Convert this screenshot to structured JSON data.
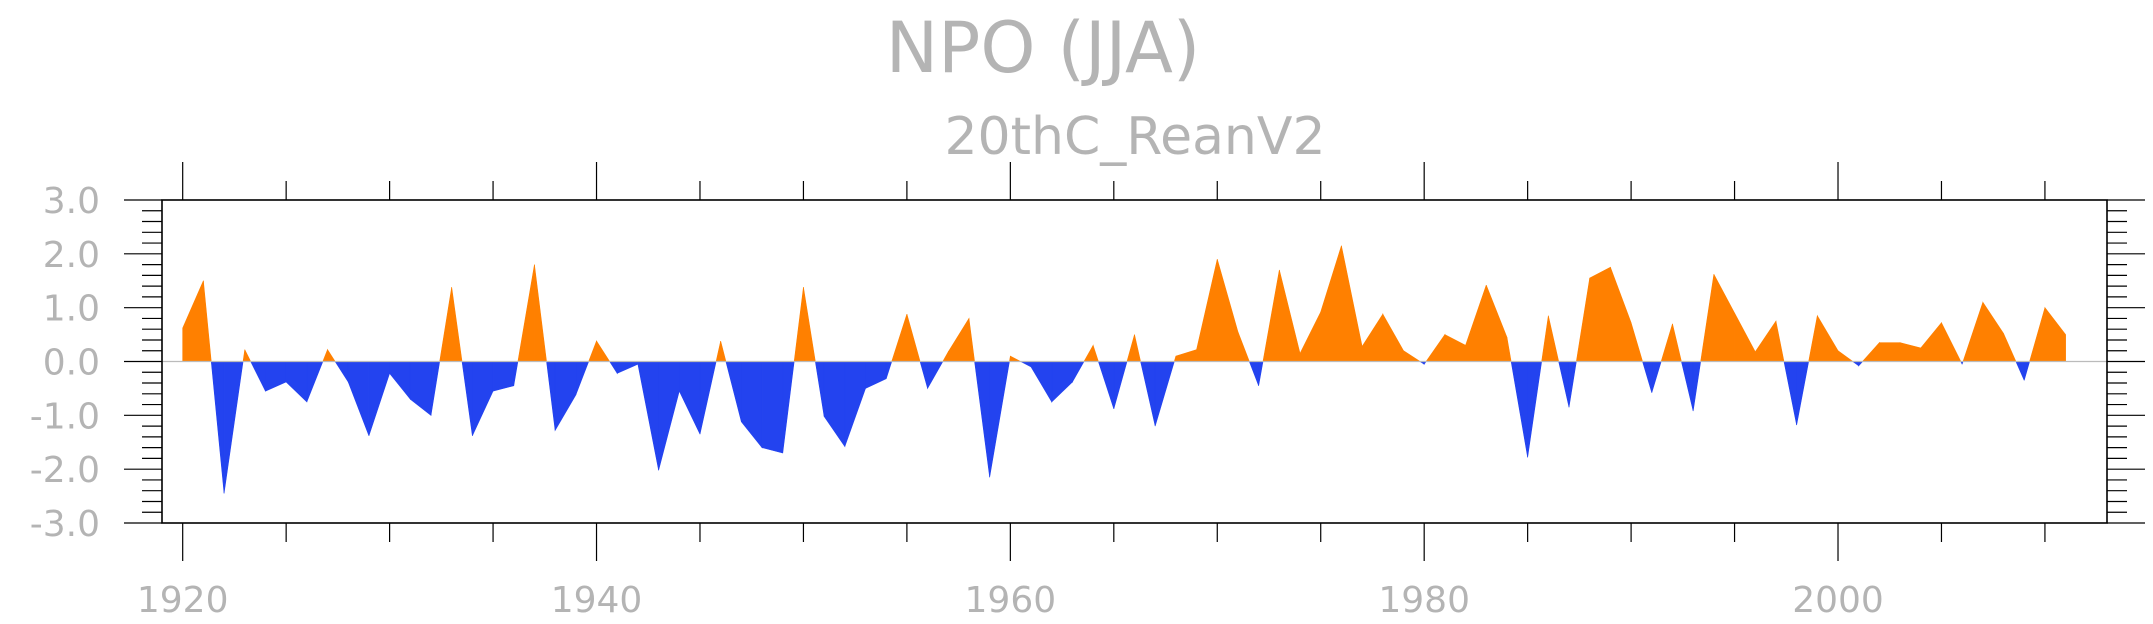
{
  "chart_data": {
    "type": "area",
    "title": "NPO (JJA)",
    "subtitle": "20thC_ReanV2",
    "xlabel": "",
    "ylabel": "",
    "xlim": [
      1919,
      2013
    ],
    "ylim": [
      -3.0,
      3.0
    ],
    "grid": false,
    "xticks": [
      1920,
      1940,
      1960,
      1980,
      2000
    ],
    "xtick_labels": [
      "1920",
      "1940",
      "1960",
      "1980",
      "2000"
    ],
    "yticks": [
      -3.0,
      -2.0,
      -1.0,
      0.0,
      1.0,
      2.0,
      3.0
    ],
    "ytick_labels": [
      "-3.0",
      "-2.0",
      "-1.0",
      "0.0",
      "1.0",
      "2.0",
      "3.0"
    ],
    "positive_color": "#ff8000",
    "negative_color": "#2343ef",
    "x": [
      1920,
      1921,
      1922,
      1923,
      1924,
      1925,
      1926,
      1927,
      1928,
      1929,
      1930,
      1931,
      1932,
      1933,
      1934,
      1935,
      1936,
      1937,
      1938,
      1939,
      1940,
      1941,
      1942,
      1943,
      1944,
      1945,
      1946,
      1947,
      1948,
      1949,
      1950,
      1951,
      1952,
      1953,
      1954,
      1955,
      1956,
      1957,
      1958,
      1959,
      1960,
      1961,
      1962,
      1963,
      1964,
      1965,
      1966,
      1967,
      1968,
      1969,
      1970,
      1971,
      1972,
      1973,
      1974,
      1975,
      1976,
      1977,
      1978,
      1979,
      1980,
      1981,
      1982,
      1983,
      1984,
      1985,
      1986,
      1987,
      1988,
      1989,
      1990,
      1991,
      1992,
      1993,
      1994,
      1995,
      1996,
      1997,
      1998,
      1999,
      2000,
      2001,
      2002,
      2003,
      2004,
      2005,
      2006,
      2007,
      2008,
      2009,
      2010,
      2011
    ],
    "values": [
      0.62,
      1.5,
      -2.45,
      0.22,
      -0.55,
      -0.38,
      -0.75,
      0.22,
      -0.38,
      -1.38,
      -0.22,
      -0.7,
      -1.0,
      1.38,
      -1.38,
      -0.55,
      -0.45,
      1.8,
      -1.28,
      -0.62,
      0.38,
      -0.22,
      -0.05,
      -2.02,
      -0.55,
      -1.35,
      0.38,
      -1.12,
      -1.6,
      -1.7,
      1.38,
      -1.02,
      -1.58,
      -0.5,
      -0.32,
      0.88,
      -0.5,
      0.18,
      0.8,
      -2.15,
      0.1,
      -0.1,
      -0.75,
      -0.38,
      0.3,
      -0.88,
      0.5,
      -1.2,
      0.1,
      0.22,
      1.9,
      0.55,
      -0.45,
      1.7,
      0.15,
      0.92,
      2.15,
      0.28,
      0.88,
      0.2,
      -0.05,
      0.5,
      0.3,
      1.42,
      0.45,
      -1.78,
      0.85,
      -0.85,
      1.55,
      1.75,
      0.72,
      -0.58,
      0.7,
      -0.92,
      1.62,
      0.9,
      0.18,
      0.75,
      -1.18,
      0.85,
      0.2,
      -0.08,
      0.35,
      0.35,
      0.25,
      0.72,
      -0.05,
      1.1,
      0.52,
      -0.35,
      1.0,
      0.5
    ]
  }
}
